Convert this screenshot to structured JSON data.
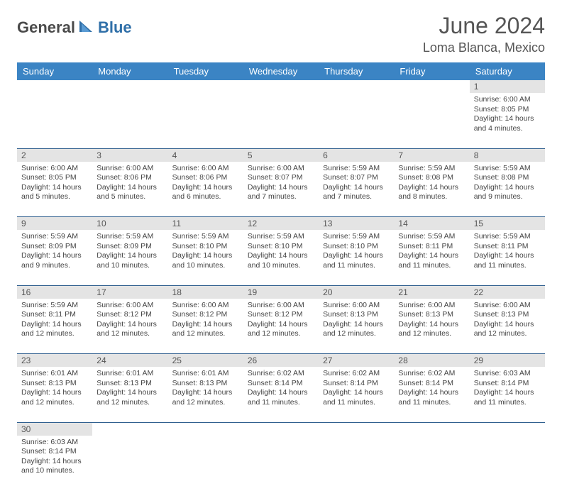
{
  "logo": {
    "textDark": "General",
    "textBlue": "Blue"
  },
  "title": "June 2024",
  "location": "Loma Blanca, Mexico",
  "colors": {
    "headerBg": "#3b84c4",
    "headerText": "#ffffff",
    "dayNumBg": "#e4e4e4",
    "border": "#2f5f8f",
    "bodyText": "#444444",
    "titleText": "#555555"
  },
  "weekdays": [
    "Sunday",
    "Monday",
    "Tuesday",
    "Wednesday",
    "Thursday",
    "Friday",
    "Saturday"
  ],
  "weeks": [
    [
      null,
      null,
      null,
      null,
      null,
      null,
      {
        "n": "1",
        "sr": "6:00 AM",
        "ss": "8:05 PM",
        "dl": "14 hours and 4 minutes."
      }
    ],
    [
      {
        "n": "2",
        "sr": "6:00 AM",
        "ss": "8:05 PM",
        "dl": "14 hours and 5 minutes."
      },
      {
        "n": "3",
        "sr": "6:00 AM",
        "ss": "8:06 PM",
        "dl": "14 hours and 5 minutes."
      },
      {
        "n": "4",
        "sr": "6:00 AM",
        "ss": "8:06 PM",
        "dl": "14 hours and 6 minutes."
      },
      {
        "n": "5",
        "sr": "6:00 AM",
        "ss": "8:07 PM",
        "dl": "14 hours and 7 minutes."
      },
      {
        "n": "6",
        "sr": "5:59 AM",
        "ss": "8:07 PM",
        "dl": "14 hours and 7 minutes."
      },
      {
        "n": "7",
        "sr": "5:59 AM",
        "ss": "8:08 PM",
        "dl": "14 hours and 8 minutes."
      },
      {
        "n": "8",
        "sr": "5:59 AM",
        "ss": "8:08 PM",
        "dl": "14 hours and 9 minutes."
      }
    ],
    [
      {
        "n": "9",
        "sr": "5:59 AM",
        "ss": "8:09 PM",
        "dl": "14 hours and 9 minutes."
      },
      {
        "n": "10",
        "sr": "5:59 AM",
        "ss": "8:09 PM",
        "dl": "14 hours and 10 minutes."
      },
      {
        "n": "11",
        "sr": "5:59 AM",
        "ss": "8:10 PM",
        "dl": "14 hours and 10 minutes."
      },
      {
        "n": "12",
        "sr": "5:59 AM",
        "ss": "8:10 PM",
        "dl": "14 hours and 10 minutes."
      },
      {
        "n": "13",
        "sr": "5:59 AM",
        "ss": "8:10 PM",
        "dl": "14 hours and 11 minutes."
      },
      {
        "n": "14",
        "sr": "5:59 AM",
        "ss": "8:11 PM",
        "dl": "14 hours and 11 minutes."
      },
      {
        "n": "15",
        "sr": "5:59 AM",
        "ss": "8:11 PM",
        "dl": "14 hours and 11 minutes."
      }
    ],
    [
      {
        "n": "16",
        "sr": "5:59 AM",
        "ss": "8:11 PM",
        "dl": "14 hours and 12 minutes."
      },
      {
        "n": "17",
        "sr": "6:00 AM",
        "ss": "8:12 PM",
        "dl": "14 hours and 12 minutes."
      },
      {
        "n": "18",
        "sr": "6:00 AM",
        "ss": "8:12 PM",
        "dl": "14 hours and 12 minutes."
      },
      {
        "n": "19",
        "sr": "6:00 AM",
        "ss": "8:12 PM",
        "dl": "14 hours and 12 minutes."
      },
      {
        "n": "20",
        "sr": "6:00 AM",
        "ss": "8:13 PM",
        "dl": "14 hours and 12 minutes."
      },
      {
        "n": "21",
        "sr": "6:00 AM",
        "ss": "8:13 PM",
        "dl": "14 hours and 12 minutes."
      },
      {
        "n": "22",
        "sr": "6:00 AM",
        "ss": "8:13 PM",
        "dl": "14 hours and 12 minutes."
      }
    ],
    [
      {
        "n": "23",
        "sr": "6:01 AM",
        "ss": "8:13 PM",
        "dl": "14 hours and 12 minutes."
      },
      {
        "n": "24",
        "sr": "6:01 AM",
        "ss": "8:13 PM",
        "dl": "14 hours and 12 minutes."
      },
      {
        "n": "25",
        "sr": "6:01 AM",
        "ss": "8:13 PM",
        "dl": "14 hours and 12 minutes."
      },
      {
        "n": "26",
        "sr": "6:02 AM",
        "ss": "8:14 PM",
        "dl": "14 hours and 11 minutes."
      },
      {
        "n": "27",
        "sr": "6:02 AM",
        "ss": "8:14 PM",
        "dl": "14 hours and 11 minutes."
      },
      {
        "n": "28",
        "sr": "6:02 AM",
        "ss": "8:14 PM",
        "dl": "14 hours and 11 minutes."
      },
      {
        "n": "29",
        "sr": "6:03 AM",
        "ss": "8:14 PM",
        "dl": "14 hours and 11 minutes."
      }
    ],
    [
      {
        "n": "30",
        "sr": "6:03 AM",
        "ss": "8:14 PM",
        "dl": "14 hours and 10 minutes."
      },
      null,
      null,
      null,
      null,
      null,
      null
    ]
  ],
  "labels": {
    "sunrise": "Sunrise: ",
    "sunset": "Sunset: ",
    "daylight": "Daylight: "
  }
}
